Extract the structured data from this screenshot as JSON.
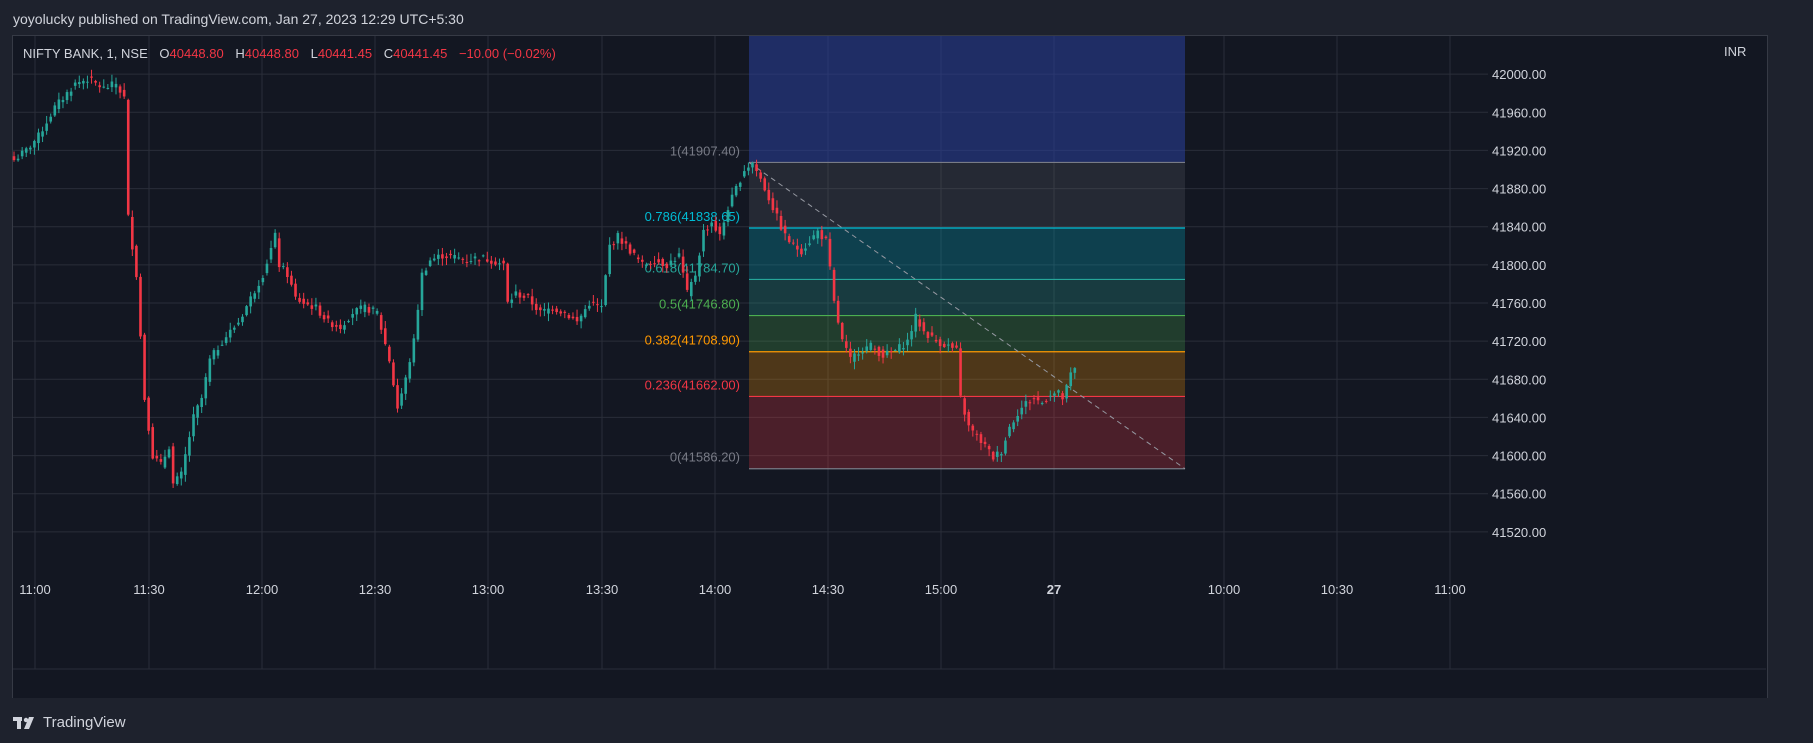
{
  "header": {
    "published_text": "yoyolucky published on TradingView.com, Jan 27, 2023 12:29 UTC+5:30"
  },
  "legend": {
    "symbol": "NIFTY BANK, 1, NSE",
    "open_label": "O",
    "open": "40448.80",
    "high_label": "H",
    "high": "40448.80",
    "low_label": "L",
    "low": "40441.45",
    "close_label": "C",
    "close": "40441.45",
    "change": "−10.00 (−0.02%)"
  },
  "currency": "INR",
  "footer": {
    "brand": "TradingView",
    "logo_icon": "tradingview-logo-icon"
  },
  "colors": {
    "up": "#26a69a",
    "down": "#f23645",
    "grid": "#2a2e39",
    "text": "#d1d4dc"
  },
  "chart_data": {
    "type": "candlestick",
    "ylim": [
      41480,
      42040
    ],
    "y_ticks": [
      "42000.00",
      "41960.00",
      "41920.00",
      "41880.00",
      "41840.00",
      "41800.00",
      "41760.00",
      "41720.00",
      "41680.00",
      "41640.00",
      "41600.00",
      "41560.00",
      "41520.00"
    ],
    "x_ticks": [
      "11:00",
      "11:30",
      "12:00",
      "12:30",
      "13:00",
      "13:30",
      "14:00",
      "14:30",
      "15:00",
      "27",
      "10:00",
      "10:30",
      "11:00"
    ],
    "x_bold_label": "27",
    "key_path": [
      [
        0,
        41910
      ],
      [
        3,
        41920
      ],
      [
        6,
        41935
      ],
      [
        10,
        41965
      ],
      [
        15,
        41990
      ],
      [
        18,
        41995
      ],
      [
        22,
        41985
      ],
      [
        25,
        41990
      ],
      [
        27,
        41975
      ],
      [
        28,
        41850
      ],
      [
        30,
        41790
      ],
      [
        32,
        41660
      ],
      [
        34,
        41600
      ],
      [
        36,
        41590
      ],
      [
        38,
        41610
      ],
      [
        39,
        41570
      ],
      [
        41,
        41580
      ],
      [
        42,
        41600
      ],
      [
        44,
        41640
      ],
      [
        46,
        41660
      ],
      [
        48,
        41700
      ],
      [
        51,
        41720
      ],
      [
        55,
        41740
      ],
      [
        58,
        41765
      ],
      [
        61,
        41790
      ],
      [
        64,
        41830
      ],
      [
        65,
        41800
      ],
      [
        67,
        41790
      ],
      [
        69,
        41765
      ],
      [
        71,
        41760
      ],
      [
        74,
        41755
      ],
      [
        77,
        41740
      ],
      [
        80,
        41735
      ],
      [
        83,
        41750
      ],
      [
        86,
        41755
      ],
      [
        89,
        41750
      ],
      [
        92,
        41700
      ],
      [
        94,
        41650
      ],
      [
        96,
        41680
      ],
      [
        98,
        41720
      ],
      [
        100,
        41790
      ],
      [
        102,
        41805
      ],
      [
        105,
        41810
      ],
      [
        108,
        41808
      ],
      [
        111,
        41805
      ],
      [
        114,
        41808
      ],
      [
        117,
        41805
      ],
      [
        120,
        41800
      ],
      [
        121,
        41760
      ],
      [
        123,
        41770
      ],
      [
        126,
        41765
      ],
      [
        129,
        41750
      ],
      [
        132,
        41755
      ],
      [
        135,
        41750
      ],
      [
        138,
        41740
      ],
      [
        141,
        41760
      ],
      [
        144,
        41755
      ],
      [
        146,
        41820
      ],
      [
        148,
        41830
      ],
      [
        151,
        41815
      ],
      [
        154,
        41800
      ],
      [
        157,
        41805
      ],
      [
        160,
        41800
      ],
      [
        163,
        41810
      ],
      [
        165,
        41770
      ],
      [
        167,
        41790
      ],
      [
        169,
        41835
      ],
      [
        171,
        41845
      ],
      [
        173,
        41830
      ],
      [
        175,
        41860
      ],
      [
        177,
        41880
      ],
      [
        179,
        41900
      ],
      [
        181,
        41907
      ],
      [
        183,
        41890
      ],
      [
        185,
        41870
      ],
      [
        187,
        41850
      ],
      [
        189,
        41830
      ],
      [
        191,
        41820
      ],
      [
        193,
        41815
      ],
      [
        195,
        41825
      ],
      [
        197,
        41835
      ],
      [
        199,
        41825
      ],
      [
        200,
        41795
      ],
      [
        201,
        41760
      ],
      [
        203,
        41720
      ],
      [
        205,
        41700
      ],
      [
        207,
        41710
      ],
      [
        210,
        41715
      ],
      [
        213,
        41705
      ],
      [
        216,
        41710
      ],
      [
        219,
        41720
      ],
      [
        221,
        41745
      ],
      [
        223,
        41730
      ],
      [
        226,
        41720
      ],
      [
        229,
        41715
      ],
      [
        231,
        41710
      ],
      [
        232,
        41660
      ],
      [
        234,
        41630
      ],
      [
        236,
        41620
      ],
      [
        238,
        41610
      ],
      [
        240,
        41598
      ],
      [
        242,
        41605
      ],
      [
        244,
        41630
      ],
      [
        246,
        41645
      ],
      [
        248,
        41655
      ],
      [
        250,
        41660
      ],
      [
        252,
        41655
      ],
      [
        254,
        41665
      ],
      [
        256,
        41665
      ],
      [
        257,
        41660
      ],
      [
        258,
        41670
      ],
      [
        259,
        41685
      ],
      [
        260,
        41690
      ]
    ],
    "fibonacci": [
      {
        "level": "1",
        "price": 41907.4,
        "label": "1(41907.40)",
        "color": "#787b86"
      },
      {
        "level": "0.786",
        "price": 41838.65,
        "label": "0.786(41838.65)",
        "color": "#00bcd4"
      },
      {
        "level": "0.618",
        "price": 41784.7,
        "label": "0.618(41784.70)",
        "color": "#26a69a"
      },
      {
        "level": "0.5",
        "price": 41746.8,
        "label": "0.5(41746.80)",
        "color": "#4caf50"
      },
      {
        "level": "0.382",
        "price": 41708.9,
        "label": "0.382(41708.90)",
        "color": "#ff9800"
      },
      {
        "level": "0.236",
        "price": 41662.0,
        "label": "0.236(41662.00)",
        "color": "#f23645"
      },
      {
        "level": "0",
        "price": 41586.2,
        "label": "0(41586.20)",
        "color": "#787b86"
      }
    ],
    "grid": true
  }
}
